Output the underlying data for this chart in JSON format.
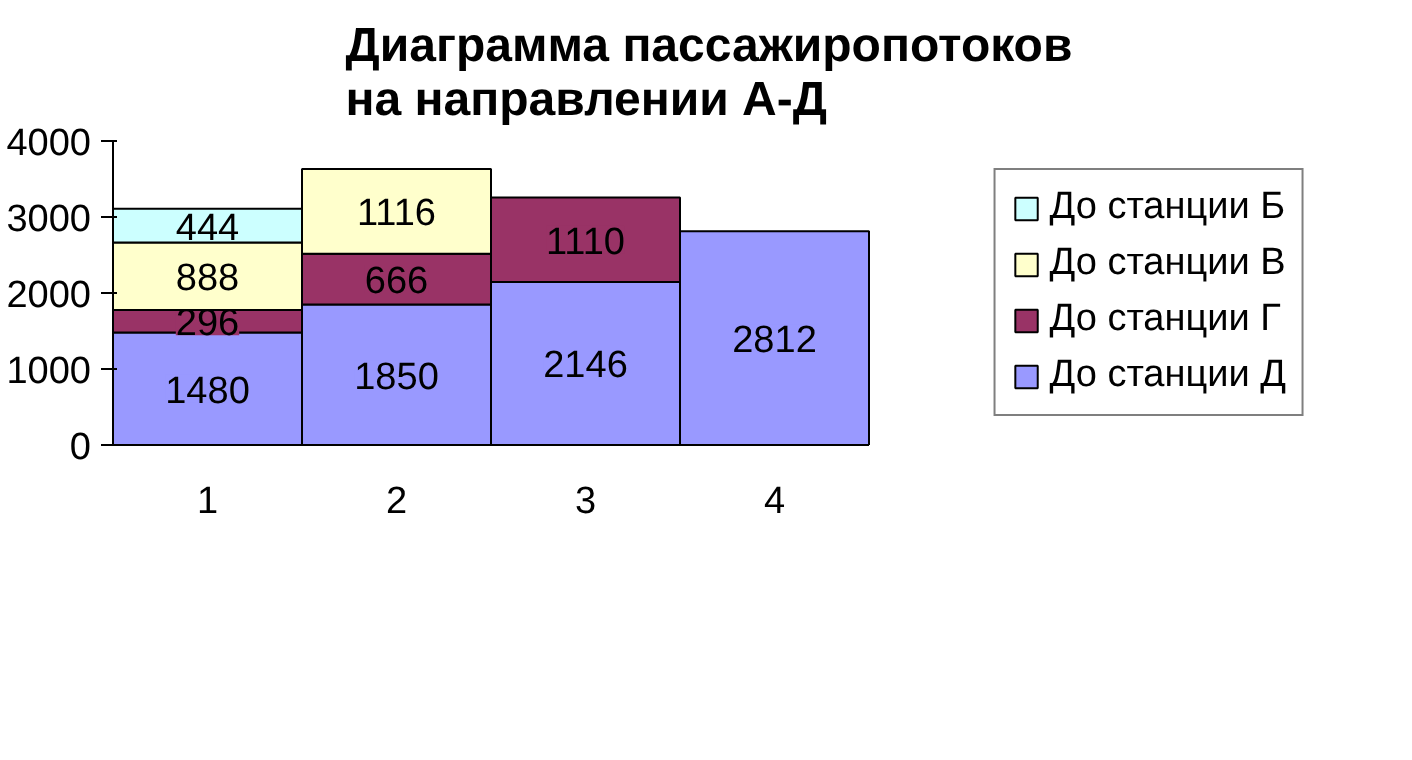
{
  "chart_data": {
    "type": "bar",
    "title": "Диаграмма пассажиропотоков на направлении А-Д",
    "categories": [
      "1",
      "2",
      "3",
      "4"
    ],
    "stacked": true,
    "series": [
      {
        "name": "До станции Д",
        "color": "#9999ff",
        "values": [
          1480,
          1850,
          2146,
          2812
        ]
      },
      {
        "name": "До станции Г",
        "color": "#993366",
        "values": [
          296,
          666,
          1110,
          null
        ]
      },
      {
        "name": "До станции В",
        "color": "#ffffcc",
        "values": [
          888,
          1116,
          null,
          null
        ]
      },
      {
        "name": "До станции Б",
        "color": "#ccffff",
        "values": [
          444,
          null,
          null,
          null
        ]
      }
    ],
    "ylim": [
      0,
      4000
    ],
    "yticks": [
      0,
      1000,
      2000,
      3000,
      4000
    ],
    "grid": false,
    "legend": "right",
    "data_labels": true
  }
}
